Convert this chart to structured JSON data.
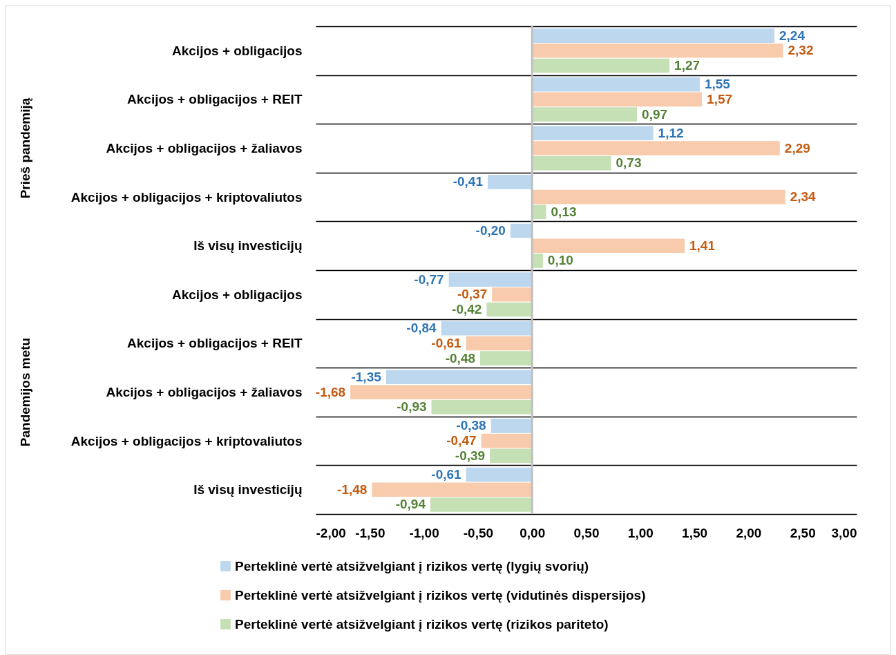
{
  "chart_data": {
    "type": "bar",
    "orientation": "horizontal",
    "categories": [
      "Akcijos + obligacijos",
      "Akcijos + obligacijos + REIT",
      "Akcijos + obligacijos + žaliavos",
      "Akcijos + obligacijos + kriptovaliutos",
      "Iš visų investicijų",
      "Akcijos + obligacijos",
      "Akcijos + obligacijos + REIT",
      "Akcijos + obligacijos + žaliavos",
      "Akcijos + obligacijos + kriptovaliutos",
      "Iš visų investicijų"
    ],
    "series": [
      {
        "name": "Perteklinė vertė atsižvelgiant į rizikos vertę (lygių svorių)",
        "color": "#bdd7ee",
        "values": [
          2.24,
          1.55,
          1.12,
          -0.41,
          -0.2,
          -0.77,
          -0.84,
          -1.35,
          -0.38,
          -0.61
        ],
        "value_labels": [
          "2,24",
          "1,55",
          "1,12",
          "-0,41",
          "-0,20",
          "-0,77",
          "-0,84",
          "-1,35",
          "-0,38",
          "-0,61"
        ]
      },
      {
        "name": "Perteklinė vertė atsižvelgiant į rizikos vertę (vidutinės dispersijos)",
        "color": "#f8cbad",
        "values": [
          2.32,
          1.57,
          2.29,
          2.34,
          1.41,
          -0.37,
          -0.61,
          -1.68,
          -0.47,
          -1.48
        ],
        "value_labels": [
          "2,32",
          "1,57",
          "2,29",
          "2,34",
          "1,41",
          "-0,37",
          "-0,61",
          "-1,68",
          "-0,47",
          "-1,48"
        ]
      },
      {
        "name": "Perteklinė vertė atsižvelgiant į rizikos vertę (rizikos pariteto)",
        "color": "#c5e0b4",
        "values": [
          1.27,
          0.97,
          0.73,
          0.13,
          0.1,
          -0.42,
          -0.48,
          -0.93,
          -0.39,
          -0.94
        ],
        "value_labels": [
          "1,27",
          "0,97",
          "0,73",
          "0,13",
          "0,10",
          "-0,42",
          "-0,48",
          "-0,93",
          "-0,39",
          "-0,94"
        ]
      }
    ],
    "xlim": [
      -2,
      3
    ],
    "xticks": [
      {
        "value": -2,
        "label": "-2,00"
      },
      {
        "value": -1.5,
        "label": "-1,50"
      },
      {
        "value": -1,
        "label": "-1,00"
      },
      {
        "value": -0.5,
        "label": "-0,50"
      },
      {
        "value": 0,
        "label": "0,00"
      },
      {
        "value": 0.5,
        "label": "0,50"
      },
      {
        "value": 1,
        "label": "1,00"
      },
      {
        "value": 1.5,
        "label": "1,50"
      },
      {
        "value": 2,
        "label": "2,00"
      },
      {
        "value": 2.5,
        "label": "2,50"
      },
      {
        "value": 3,
        "label": "3,00"
      }
    ],
    "ref_lines": [
      {
        "axis": "x",
        "value": 0,
        "color": "#bfbfbf"
      }
    ],
    "annotations": [
      "Prieš pandemiją",
      "Pandemijos metu"
    ],
    "grid": "y",
    "legend": "bottom"
  }
}
